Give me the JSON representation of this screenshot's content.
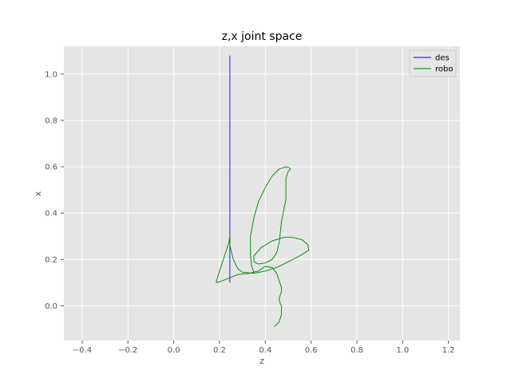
{
  "chart_data": {
    "type": "line",
    "title": "z,x joint space",
    "xlabel": "z",
    "ylabel": "x",
    "xlim": [
      -0.48,
      1.25
    ],
    "ylim": [
      -0.15,
      1.12
    ],
    "xticks": [
      -0.4,
      -0.2,
      0.0,
      0.2,
      0.4,
      0.6,
      0.8,
      1.0,
      1.2
    ],
    "xtick_labels": [
      "−0.4",
      "−0.2",
      "0.0",
      "0.2",
      "0.4",
      "0.6",
      "0.8",
      "1.0",
      "1.2"
    ],
    "yticks": [
      0.0,
      0.2,
      0.4,
      0.6,
      0.8,
      1.0
    ],
    "ytick_labels": [
      "0.0",
      "0.2",
      "0.4",
      "0.6",
      "0.8",
      "1.0"
    ],
    "grid": true,
    "legend_position": "top-right",
    "series": [
      {
        "name": "des",
        "color": "#0000ff",
        "points": [
          [
            0.245,
            0.1
          ],
          [
            0.245,
            1.08
          ]
        ]
      },
      {
        "name": "robo",
        "color": "#008000",
        "points": [
          [
            0.44,
            -0.09
          ],
          [
            0.46,
            -0.07
          ],
          [
            0.47,
            -0.04
          ],
          [
            0.47,
            0.0
          ],
          [
            0.465,
            0.01
          ],
          [
            0.46,
            0.03
          ],
          [
            0.47,
            0.06
          ],
          [
            0.47,
            0.08
          ],
          [
            0.46,
            0.11
          ],
          [
            0.45,
            0.14
          ],
          [
            0.43,
            0.165
          ],
          [
            0.4,
            0.17
          ],
          [
            0.37,
            0.15
          ],
          [
            0.33,
            0.14
          ],
          [
            0.28,
            0.135
          ],
          [
            0.23,
            0.115
          ],
          [
            0.19,
            0.1
          ],
          [
            0.185,
            0.103
          ],
          [
            0.2,
            0.15
          ],
          [
            0.22,
            0.21
          ],
          [
            0.24,
            0.27
          ],
          [
            0.245,
            0.3
          ],
          [
            0.245,
            0.26
          ],
          [
            0.26,
            0.2
          ],
          [
            0.28,
            0.16
          ],
          [
            0.3,
            0.145
          ],
          [
            0.35,
            0.14
          ],
          [
            0.4,
            0.15
          ],
          [
            0.45,
            0.165
          ],
          [
            0.5,
            0.19
          ],
          [
            0.55,
            0.215
          ],
          [
            0.59,
            0.24
          ],
          [
            0.585,
            0.265
          ],
          [
            0.56,
            0.285
          ],
          [
            0.52,
            0.295
          ],
          [
            0.48,
            0.295
          ],
          [
            0.43,
            0.28
          ],
          [
            0.38,
            0.25
          ],
          [
            0.35,
            0.215
          ],
          [
            0.35,
            0.19
          ],
          [
            0.37,
            0.18
          ],
          [
            0.4,
            0.185
          ],
          [
            0.43,
            0.2
          ],
          [
            0.45,
            0.23
          ],
          [
            0.46,
            0.27
          ],
          [
            0.465,
            0.31
          ],
          [
            0.47,
            0.36
          ],
          [
            0.48,
            0.41
          ],
          [
            0.49,
            0.46
          ],
          [
            0.49,
            0.51
          ],
          [
            0.49,
            0.55
          ],
          [
            0.5,
            0.58
          ],
          [
            0.51,
            0.59
          ],
          [
            0.505,
            0.595
          ],
          [
            0.49,
            0.6
          ],
          [
            0.46,
            0.59
          ],
          [
            0.43,
            0.56
          ],
          [
            0.4,
            0.51
          ],
          [
            0.37,
            0.45
          ],
          [
            0.35,
            0.38
          ],
          [
            0.335,
            0.3
          ],
          [
            0.335,
            0.22
          ],
          [
            0.34,
            0.17
          ],
          [
            0.35,
            0.145
          ]
        ]
      }
    ]
  }
}
